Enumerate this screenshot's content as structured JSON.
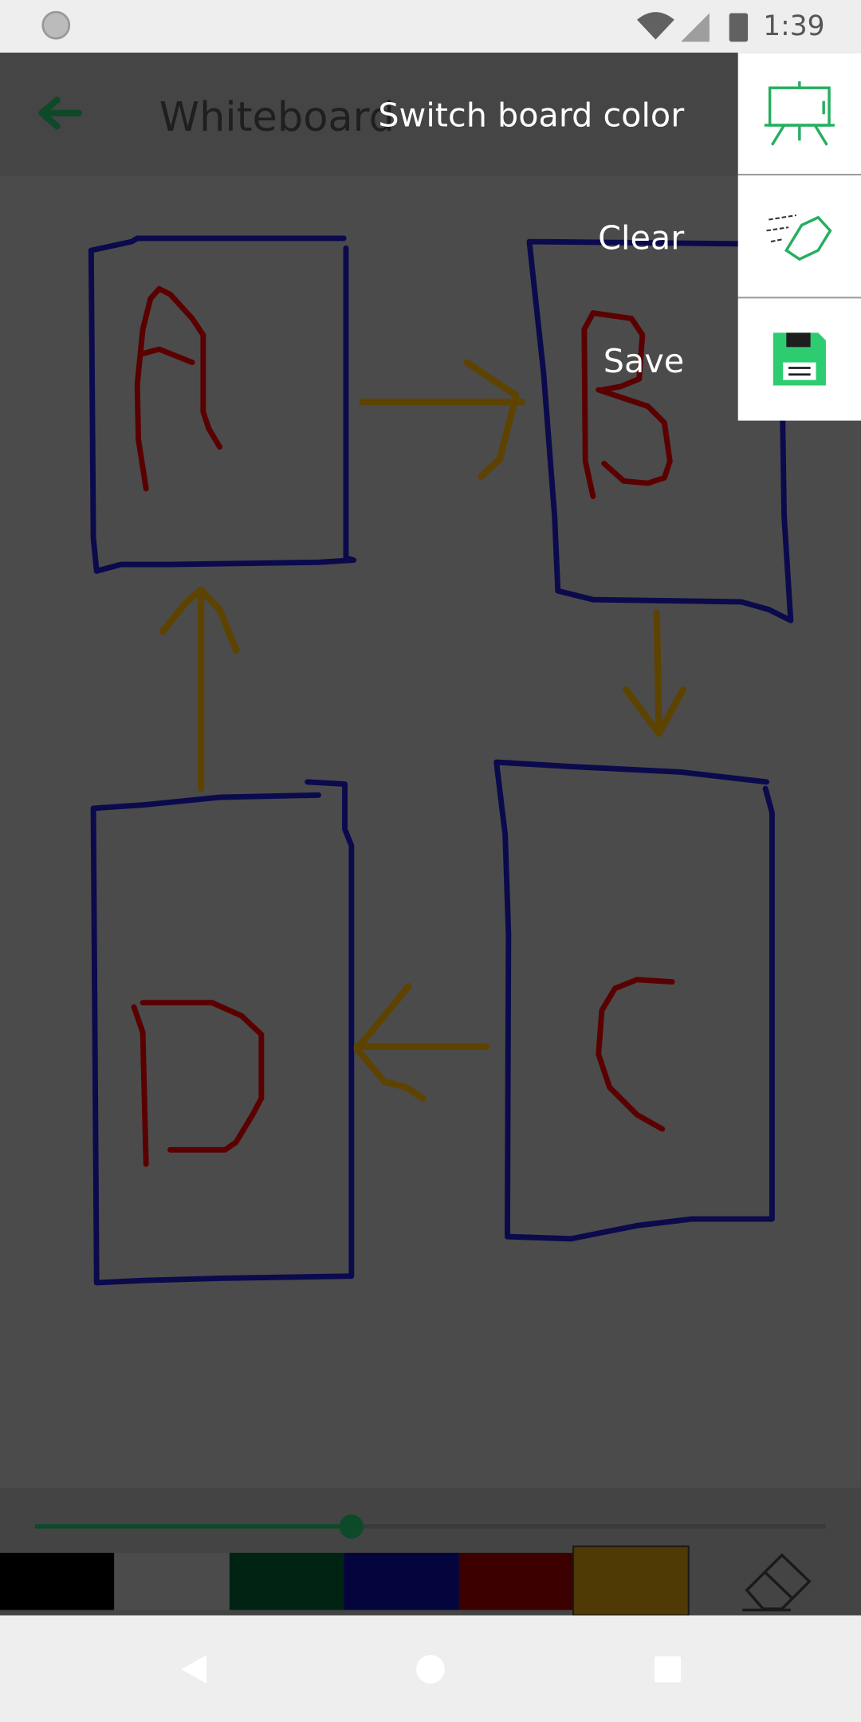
{
  "status_bar": {
    "time": "1:39"
  },
  "app_bar": {
    "title": "Whiteboard"
  },
  "menu": {
    "items": [
      "Switch board color",
      "Clear",
      "Save"
    ]
  }
}
